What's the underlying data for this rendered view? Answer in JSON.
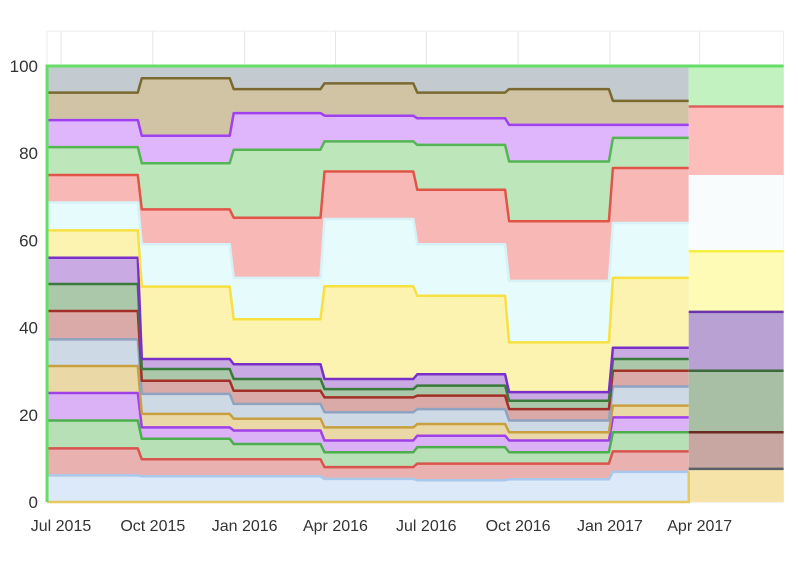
{
  "chart_data": {
    "type": "area",
    "stacked": true,
    "title": "",
    "xlabel": "",
    "ylabel": "",
    "ylim": [
      0,
      108
    ],
    "grid": true,
    "yticks": [
      "0",
      "20",
      "40",
      "60",
      "80",
      "100"
    ],
    "ytick_values": [
      0,
      20,
      40,
      60,
      80,
      100
    ],
    "xticks": [
      "Jul 2015",
      "Oct 2015",
      "Jan 2016",
      "Apr 2016",
      "Jul 2016",
      "Oct 2016",
      "Jan 2017",
      "Apr 2017"
    ],
    "xtick_dates": [
      "2015-07-01",
      "2015-10-01",
      "2016-01-01",
      "2016-04-01",
      "2016-07-01",
      "2016-10-01",
      "2017-01-01",
      "2017-04-01"
    ],
    "x_range": [
      "2015-06-17",
      "2017-06-24"
    ],
    "period_boundaries": [
      "2015-06-17",
      "2015-09-18",
      "2015-12-19",
      "2016-03-19",
      "2016-06-20",
      "2016-09-20",
      "2017-01-02",
      "2017-03-21",
      "2017-06-24"
    ],
    "series": [
      {
        "fill": "#dbe9f8",
        "line": "#a9c8ec",
        "values": [
          6.1,
          5.9,
          5.9,
          5.3,
          5.0,
          5.2,
          6.9,
          null
        ]
      },
      {
        "fill": "#e9b2b0",
        "line": "#d9534f",
        "values": [
          6.2,
          3.9,
          3.9,
          2.7,
          3.8,
          3.6,
          4.7,
          null
        ]
      },
      {
        "fill": "#b8e0b6",
        "line": "#4cae4c",
        "values": [
          6.4,
          4.7,
          3.5,
          3.4,
          3.8,
          2.6,
          4.4,
          null
        ]
      },
      {
        "fill": "#dcb2f6",
        "line": "#a040e8",
        "values": [
          6.3,
          2.6,
          3.1,
          2.7,
          2.6,
          2.7,
          3.4,
          null
        ]
      },
      {
        "fill": "#ead9a6",
        "line": "#c8a040",
        "values": [
          6.2,
          3.1,
          2.7,
          3.0,
          2.7,
          1.9,
          2.7,
          null
        ]
      },
      {
        "fill": "#ced9e6",
        "line": "#8fa3c0",
        "values": [
          6.1,
          4.6,
          3.4,
          3.5,
          3.4,
          2.7,
          4.4,
          null
        ]
      },
      {
        "fill": "#d9aaa8",
        "line": "#a33028",
        "values": [
          6.5,
          3.0,
          3.0,
          3.4,
          3.1,
          2.6,
          3.6,
          null
        ]
      },
      {
        "fill": "#abc9aa",
        "line": "#3a7a3a",
        "values": [
          6.2,
          2.7,
          2.7,
          1.9,
          2.3,
          1.9,
          2.7,
          null
        ]
      },
      {
        "fill": "#c9aae2",
        "line": "#7a30c8",
        "values": [
          6.0,
          2.3,
          3.4,
          2.3,
          2.6,
          2.0,
          2.6,
          null
        ]
      },
      {
        "fill": "#fcf3b0",
        "line": "#f7e040",
        "values": [
          6.3,
          16.6,
          10.3,
          21.3,
          18.0,
          11.4,
          16.0,
          null
        ]
      },
      {
        "fill": "#e6fbfb",
        "line": "#d6f2f6",
        "values": [
          6.4,
          9.7,
          9.5,
          15.4,
          11.8,
          14.1,
          12.6,
          null
        ]
      },
      {
        "fill": "#f7b8b6",
        "line": "#e05548",
        "values": [
          6.3,
          8.0,
          13.8,
          10.9,
          12.5,
          13.7,
          12.6,
          null
        ]
      },
      {
        "fill": "#bde6bb",
        "line": "#55b555",
        "values": [
          6.4,
          10.6,
          15.6,
          6.9,
          10.3,
          13.7,
          6.9,
          null
        ]
      },
      {
        "fill": "#dfb5fc",
        "line": "#a040f0",
        "values": [
          6.2,
          6.3,
          8.4,
          5.9,
          6.1,
          8.4,
          3.0,
          null
        ]
      },
      {
        "fill": "#d0c4a4",
        "line": "#7a6a30",
        "values": [
          6.3,
          13.2,
          5.5,
          7.4,
          5.9,
          8.2,
          5.5,
          null
        ]
      },
      {
        "fill": "#c3cbd1",
        "line": "#c3cbd1",
        "values": [
          6.1,
          2.8,
          5.3,
          4.0,
          6.1,
          5.3,
          8.0,
          null
        ]
      },
      {
        "fill": "#f6e3a8",
        "line": "#5a6068",
        "values": [
          null,
          null,
          null,
          null,
          null,
          null,
          null,
          7.6
        ]
      },
      {
        "fill": "#c8a6a2",
        "line": "#6a2a20",
        "values": [
          null,
          null,
          null,
          null,
          null,
          null,
          null,
          8.4
        ]
      },
      {
        "fill": "#a8bfa6",
        "line": "#3a6a3a",
        "values": [
          null,
          null,
          null,
          null,
          null,
          null,
          null,
          14.1
        ]
      },
      {
        "fill": "#b9a2d3",
        "line": "#6a35a8",
        "values": [
          null,
          null,
          null,
          null,
          null,
          null,
          null,
          13.5
        ]
      },
      {
        "fill": "#fdfbb6",
        "line": "#f5f040",
        "values": [
          null,
          null,
          null,
          null,
          null,
          null,
          null,
          13.9
        ]
      },
      {
        "fill": "#f8fcfd",
        "line": "#f8fcfd",
        "values": [
          null,
          null,
          null,
          null,
          null,
          null,
          null,
          17.2
        ]
      },
      {
        "fill": "#fdbdbb",
        "line": "#e06060",
        "values": [
          null,
          null,
          null,
          null,
          null,
          null,
          null,
          16.0
        ]
      },
      {
        "fill": "#c2f2c0",
        "line": "#66dd66",
        "values": [
          null,
          null,
          null,
          null,
          null,
          null,
          null,
          9.3
        ]
      }
    ],
    "total_line_color": "#66dd66",
    "baseline_color": "#e8c860"
  }
}
